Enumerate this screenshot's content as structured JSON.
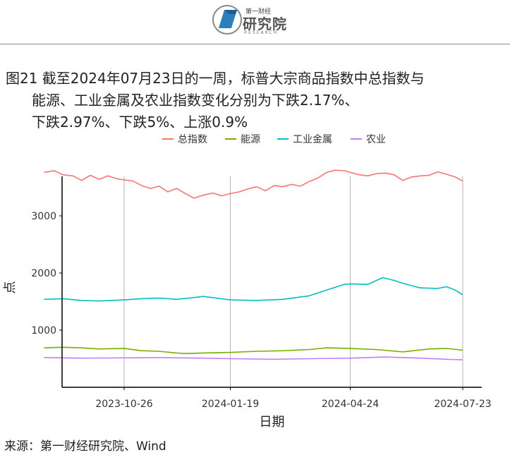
{
  "header": {
    "logo_top": "第一财经",
    "logo_main": "研究院",
    "logo_sub": "RESEARCH"
  },
  "caption": {
    "line1": "图21  截至2024年07月23日的一周，标普大宗商品指数中总指数与",
    "line2": "能源、工业金属及农业指数变化分别为下跌2.17%、",
    "line3": "下跌2.97%、下跌5%、上涨0.9%"
  },
  "source": "来源：第一财经研究院、Wind",
  "chart_data": {
    "type": "line",
    "xlabel": "日期",
    "ylabel": "点",
    "ylim": [
      0,
      4000
    ],
    "yticks": [
      1000,
      2000,
      3000
    ],
    "xlim": [
      "2023-08-23",
      "2024-07-23"
    ],
    "xticks": [
      "2023-10-26",
      "2024-01-19",
      "2024-04-24",
      "2024-07-23"
    ],
    "grid": "vertical at x ticks",
    "legend_position": "top",
    "series": [
      {
        "name": "总指数",
        "color": "#F8766D",
        "points": [
          [
            "2023-08-23",
            3760
          ],
          [
            "2023-08-31",
            3790
          ],
          [
            "2023-09-07",
            3720
          ],
          [
            "2023-09-15",
            3700
          ],
          [
            "2023-09-22",
            3620
          ],
          [
            "2023-09-29",
            3710
          ],
          [
            "2023-10-06",
            3640
          ],
          [
            "2023-10-13",
            3700
          ],
          [
            "2023-10-20",
            3650
          ],
          [
            "2023-10-26",
            3630
          ],
          [
            "2023-11-02",
            3610
          ],
          [
            "2023-11-09",
            3530
          ],
          [
            "2023-11-16",
            3480
          ],
          [
            "2023-11-23",
            3520
          ],
          [
            "2023-11-30",
            3420
          ],
          [
            "2023-12-07",
            3480
          ],
          [
            "2023-12-14",
            3390
          ],
          [
            "2023-12-21",
            3310
          ],
          [
            "2023-12-28",
            3360
          ],
          [
            "2024-01-05",
            3400
          ],
          [
            "2024-01-12",
            3350
          ],
          [
            "2024-01-19",
            3390
          ],
          [
            "2024-01-26",
            3420
          ],
          [
            "2024-02-02",
            3470
          ],
          [
            "2024-02-09",
            3510
          ],
          [
            "2024-02-16",
            3440
          ],
          [
            "2024-02-23",
            3530
          ],
          [
            "2024-03-01",
            3510
          ],
          [
            "2024-03-08",
            3550
          ],
          [
            "2024-03-15",
            3520
          ],
          [
            "2024-03-22",
            3600
          ],
          [
            "2024-03-29",
            3660
          ],
          [
            "2024-04-05",
            3760
          ],
          [
            "2024-04-12",
            3800
          ],
          [
            "2024-04-19",
            3790
          ],
          [
            "2024-04-24",
            3760
          ],
          [
            "2024-05-01",
            3720
          ],
          [
            "2024-05-08",
            3700
          ],
          [
            "2024-05-15",
            3740
          ],
          [
            "2024-05-22",
            3750
          ],
          [
            "2024-05-29",
            3720
          ],
          [
            "2024-06-05",
            3620
          ],
          [
            "2024-06-12",
            3680
          ],
          [
            "2024-06-19",
            3700
          ],
          [
            "2024-06-26",
            3710
          ],
          [
            "2024-07-03",
            3770
          ],
          [
            "2024-07-10",
            3730
          ],
          [
            "2024-07-17",
            3680
          ],
          [
            "2024-07-23",
            3610
          ]
        ]
      },
      {
        "name": "能源",
        "color": "#7CAE00",
        "points": [
          [
            "2023-08-23",
            690
          ],
          [
            "2023-09-07",
            700
          ],
          [
            "2023-09-22",
            690
          ],
          [
            "2023-10-06",
            670
          ],
          [
            "2023-10-26",
            680
          ],
          [
            "2023-11-09",
            640
          ],
          [
            "2023-11-23",
            630
          ],
          [
            "2023-12-07",
            600
          ],
          [
            "2023-12-14",
            590
          ],
          [
            "2023-12-28",
            600
          ],
          [
            "2024-01-19",
            610
          ],
          [
            "2024-02-09",
            630
          ],
          [
            "2024-03-01",
            640
          ],
          [
            "2024-03-22",
            660
          ],
          [
            "2024-04-05",
            690
          ],
          [
            "2024-04-24",
            680
          ],
          [
            "2024-05-15",
            660
          ],
          [
            "2024-06-05",
            620
          ],
          [
            "2024-06-26",
            670
          ],
          [
            "2024-07-10",
            680
          ],
          [
            "2024-07-23",
            650
          ]
        ]
      },
      {
        "name": "工业金属",
        "color": "#00BFC4",
        "points": [
          [
            "2023-08-23",
            1540
          ],
          [
            "2023-09-07",
            1550
          ],
          [
            "2023-09-22",
            1520
          ],
          [
            "2023-10-06",
            1510
          ],
          [
            "2023-10-26",
            1530
          ],
          [
            "2023-11-09",
            1550
          ],
          [
            "2023-11-23",
            1560
          ],
          [
            "2023-12-07",
            1540
          ],
          [
            "2023-12-21",
            1570
          ],
          [
            "2023-12-28",
            1590
          ],
          [
            "2024-01-19",
            1530
          ],
          [
            "2024-02-09",
            1520
          ],
          [
            "2024-03-01",
            1540
          ],
          [
            "2024-03-22",
            1600
          ],
          [
            "2024-04-05",
            1700
          ],
          [
            "2024-04-19",
            1800
          ],
          [
            "2024-04-24",
            1810
          ],
          [
            "2024-05-08",
            1800
          ],
          [
            "2024-05-20",
            1920
          ],
          [
            "2024-05-29",
            1870
          ],
          [
            "2024-06-05",
            1820
          ],
          [
            "2024-06-19",
            1740
          ],
          [
            "2024-07-03",
            1730
          ],
          [
            "2024-07-10",
            1760
          ],
          [
            "2024-07-17",
            1700
          ],
          [
            "2024-07-23",
            1620
          ]
        ]
      },
      {
        "name": "农业",
        "color": "#C77CFF",
        "points": [
          [
            "2023-08-23",
            520
          ],
          [
            "2023-09-22",
            510
          ],
          [
            "2023-10-26",
            515
          ],
          [
            "2023-11-23",
            520
          ],
          [
            "2023-12-28",
            510
          ],
          [
            "2024-01-19",
            500
          ],
          [
            "2024-02-23",
            490
          ],
          [
            "2024-03-22",
            500
          ],
          [
            "2024-04-24",
            510
          ],
          [
            "2024-05-22",
            530
          ],
          [
            "2024-06-19",
            510
          ],
          [
            "2024-07-10",
            490
          ],
          [
            "2024-07-23",
            480
          ]
        ]
      }
    ]
  }
}
